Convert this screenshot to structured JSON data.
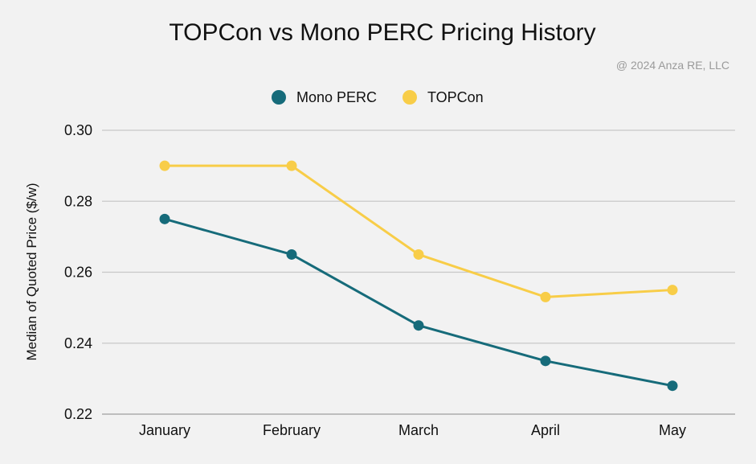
{
  "chart_data": {
    "type": "line",
    "title": "TOPCon vs Mono PERC Pricing History",
    "credit": "@ 2024 Anza RE, LLC",
    "xlabel": "",
    "ylabel": "Median of Quoted Price ($/w)",
    "categories": [
      "January",
      "February",
      "March",
      "April",
      "May"
    ],
    "ylim": [
      0.22,
      0.3
    ],
    "yticks": [
      "0.22",
      "0.24",
      "0.26",
      "0.28",
      "0.30"
    ],
    "grid": true,
    "legend_position": "top-center",
    "series": [
      {
        "name": "Mono PERC",
        "color": "#166b7a",
        "values": [
          0.275,
          0.265,
          0.245,
          0.235,
          0.228
        ]
      },
      {
        "name": "TOPCon",
        "color": "#f8cd48",
        "values": [
          0.29,
          0.29,
          0.265,
          0.253,
          0.255
        ]
      }
    ]
  }
}
